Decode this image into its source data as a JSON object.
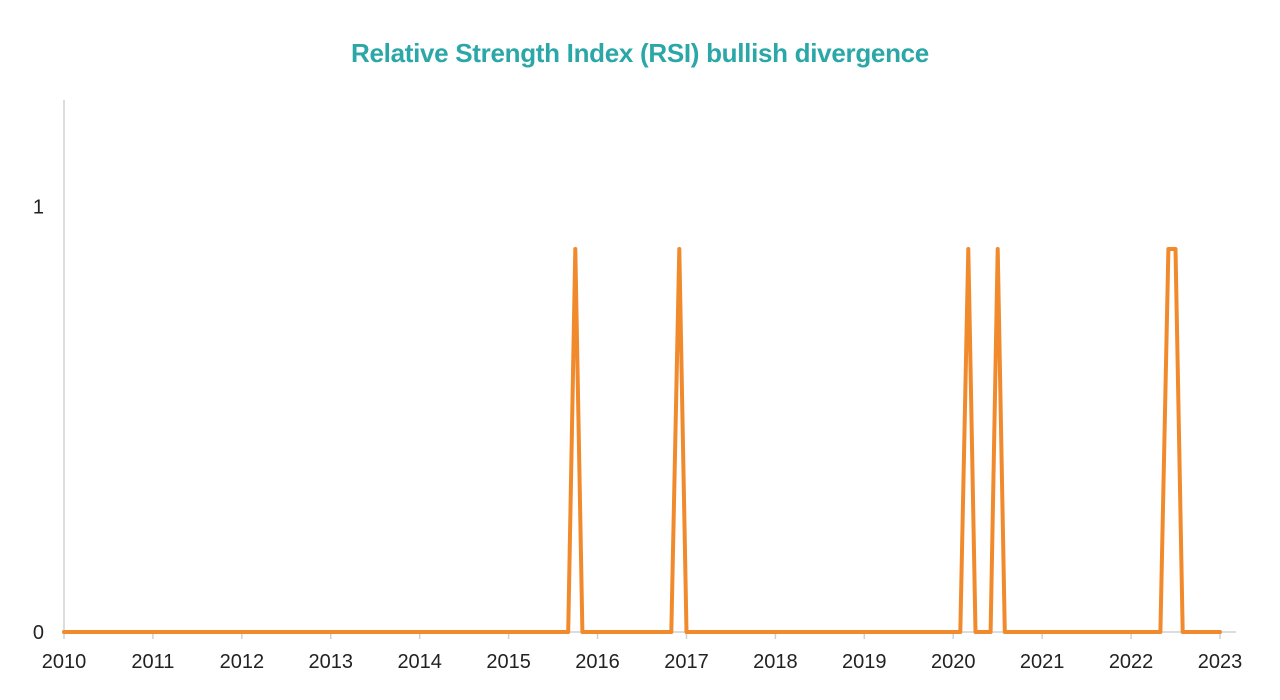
{
  "chart_data": {
    "type": "line",
    "title": "Relative Strength Index (RSI) bullish divergence",
    "xlabel": "",
    "ylabel": "",
    "x_tick_labels": [
      "2010",
      "2011",
      "2012",
      "2013",
      "2014",
      "2015",
      "2016",
      "2017",
      "2018",
      "2019",
      "2020",
      "2021",
      "2022",
      "2023"
    ],
    "y_tick_labels": [
      "0",
      "1"
    ],
    "xlim": [
      2010,
      2023
    ],
    "ylim": [
      0,
      1.25
    ],
    "grid": false,
    "legend": "none",
    "series": [
      {
        "x": [
          2010.0,
          2015.67,
          2015.75,
          2015.83,
          2016.83,
          2016.92,
          2017.0,
          2020.08,
          2020.17,
          2020.25,
          2020.42,
          2020.5,
          2020.58,
          2022.33,
          2022.42,
          2022.5,
          2022.58,
          2023.0
        ],
        "values": [
          0,
          0,
          0.9,
          0,
          0,
          0.9,
          0,
          0,
          0.9,
          0,
          0,
          0.9,
          0,
          0,
          0.9,
          0.9,
          0,
          0
        ],
        "color": "#f08a2c"
      }
    ]
  },
  "colors": {
    "title": "#2ba7a8",
    "line": "#f08a2c",
    "axis": "#d0d0d0"
  }
}
